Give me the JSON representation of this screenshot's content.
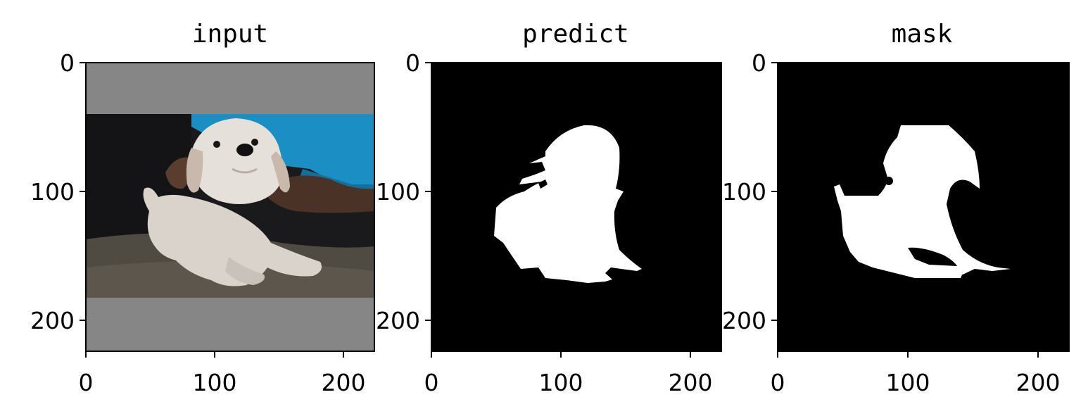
{
  "chart_data": [
    {
      "type": "image",
      "title": "input",
      "xlim": [
        0,
        224
      ],
      "ylim": [
        224,
        0
      ],
      "xticks": [
        0,
        100,
        200
      ],
      "yticks": [
        0,
        100,
        200
      ],
      "xtick_labels": [
        "0",
        "100",
        "200"
      ],
      "ytick_labels": [
        "0",
        "100",
        "200"
      ],
      "content": "photo of a white puppy lying on a rug, letterboxed with gray bars",
      "photo_rows": [
        40,
        182
      ],
      "pad_color": "#868686"
    },
    {
      "type": "image",
      "title": "predict",
      "xlim": [
        0,
        224
      ],
      "ylim": [
        224,
        0
      ],
      "xticks": [
        0,
        100,
        200
      ],
      "yticks": [
        0,
        100,
        200
      ],
      "xtick_labels": [
        "0",
        "100",
        "200"
      ],
      "ytick_labels": [
        "0",
        "100",
        "200"
      ],
      "content": "binary segmentation mask (white region on black)",
      "background": "#000000",
      "foreground": "#ffffff"
    },
    {
      "type": "image",
      "title": "mask",
      "xlim": [
        0,
        224
      ],
      "ylim": [
        224,
        0
      ],
      "xticks": [
        0,
        100,
        200
      ],
      "yticks": [
        0,
        100,
        200
      ],
      "xtick_labels": [
        "0",
        "100",
        "200"
      ],
      "ytick_labels": [
        "0",
        "100",
        "200"
      ],
      "content": "binary ground-truth mask (white region on black)",
      "background": "#000000",
      "foreground": "#ffffff"
    }
  ]
}
